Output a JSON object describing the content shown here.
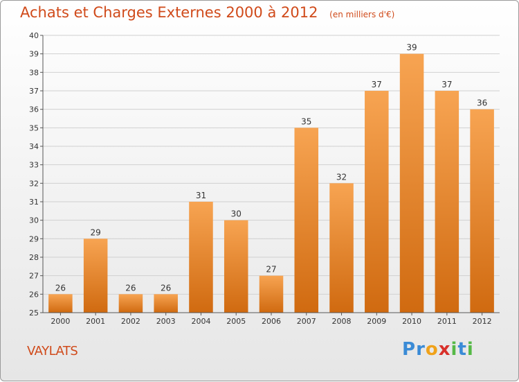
{
  "title": "Achats et Charges Externes 2000 à 2012",
  "subtitle": "(en milliers d'€)",
  "location": "VAYLATS",
  "logo": {
    "text": "Proxiti"
  },
  "colors": {
    "bar_top": "#f7a452",
    "bar_bottom": "#d06a10",
    "title": "#d04a1a"
  },
  "chart_data": {
    "type": "bar",
    "title": "Achats et Charges Externes 2000 à 2012",
    "subtitle": "(en milliers d'€)",
    "categories": [
      "2000",
      "2001",
      "2002",
      "2003",
      "2004",
      "2005",
      "2006",
      "2007",
      "2008",
      "2009",
      "2010",
      "2011",
      "2012"
    ],
    "values": [
      26,
      29,
      26,
      26,
      31,
      30,
      27,
      35,
      32,
      37,
      39,
      37,
      36
    ],
    "ylim": [
      25,
      40
    ],
    "yticks": [
      25,
      26,
      27,
      28,
      29,
      30,
      31,
      32,
      33,
      34,
      35,
      36,
      37,
      38,
      39,
      40
    ],
    "grid": true,
    "data_labels": true
  }
}
